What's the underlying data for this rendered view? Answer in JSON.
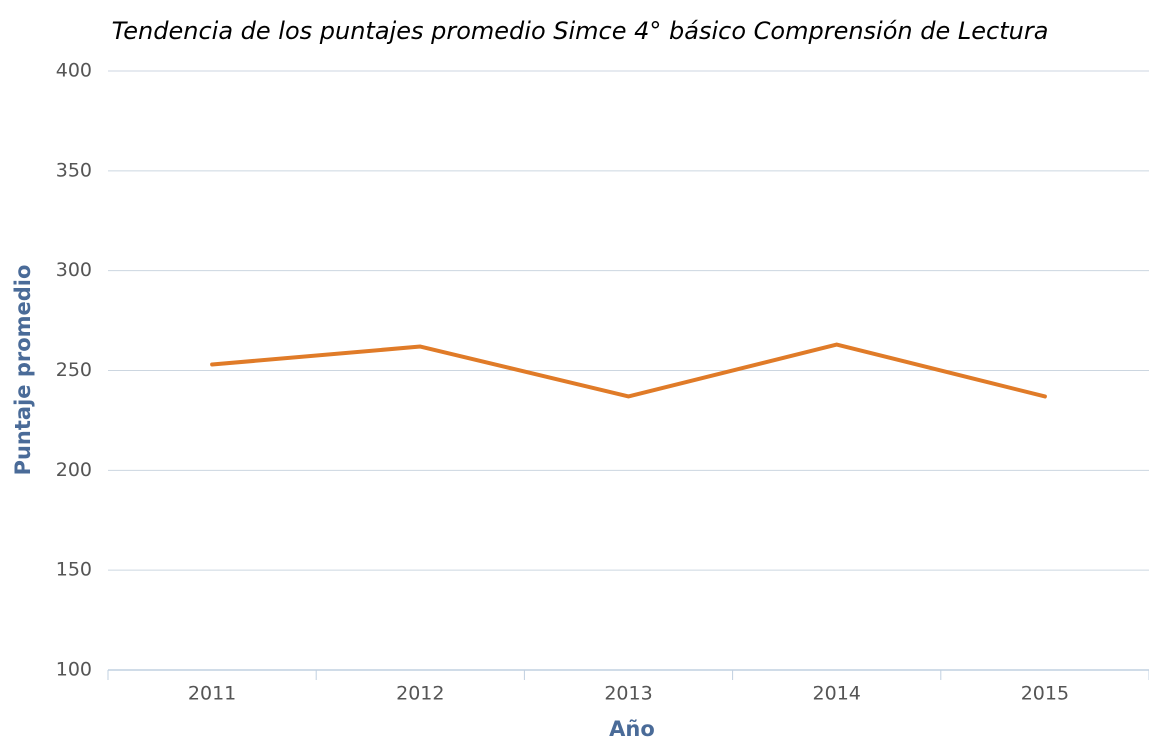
{
  "chart_data": {
    "type": "line",
    "title": "Tendencia de los puntajes promedio Simce 4° básico Comprensión de Lectura",
    "x_label": "Año",
    "y_label": "Puntaje promedio",
    "categories": [
      "2011",
      "2012",
      "2013",
      "2014",
      "2015"
    ],
    "series": [
      {
        "name": "Puntaje promedio",
        "color": "#e07b28",
        "values": [
          253,
          262,
          237,
          263,
          237
        ]
      }
    ],
    "ylim": [
      100,
      400
    ],
    "yticks": [
      100,
      150,
      200,
      250,
      300,
      350,
      400
    ],
    "grid": true
  }
}
